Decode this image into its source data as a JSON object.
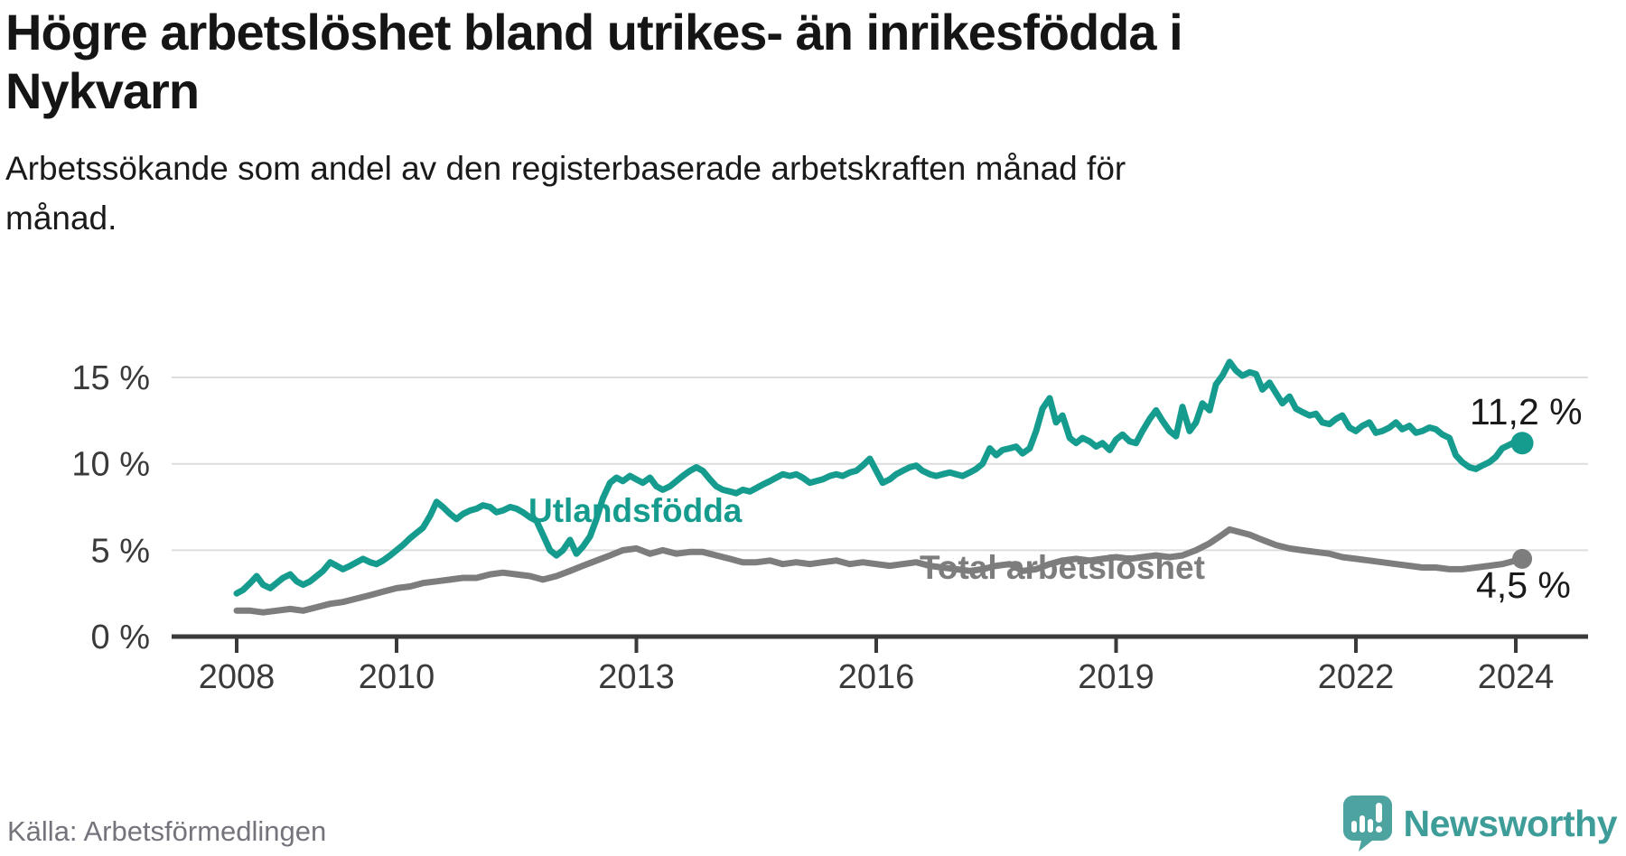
{
  "header": {
    "title": "Högre arbetslöshet bland utrikes- än inrikesfödda i\nNykvarn",
    "subtitle": "Arbetssökande som andel av den registerbaserade arbetskraften månad för\nmånad."
  },
  "footer": {
    "source": "Källa: Arbetsförmedlingen",
    "logo_text": "Newsworthy",
    "logo_color": "#3e9d99",
    "logo_icon": "speech-bubble-bar-chart-exclamation"
  },
  "colors": {
    "foreign_born_line": "#159c8f",
    "total_line": "#7d7d7d",
    "grid": "#dddddd",
    "axis": "#3a3a3a",
    "annotation_text": "#1a1a1a"
  },
  "chart_data": {
    "type": "line",
    "title": "Högre arbetslöshet bland utrikes- än inrikesfödda i Nykvarn",
    "subtitle": "Arbetssökande som andel av den registerbaserade arbetskraften månad för månad.",
    "unit": "%",
    "grid": true,
    "legend_position": "inline-labels",
    "x_axis": {
      "ticks": [
        2008,
        2010,
        2013,
        2016,
        2019,
        2022,
        2024
      ],
      "tick_labels": [
        "2008",
        "2010",
        "2013",
        "2016",
        "2019",
        "2022",
        "2024"
      ],
      "range": [
        2007.2,
        2024.9
      ]
    },
    "y_axis": {
      "ticks": [
        15,
        10,
        5,
        0
      ],
      "tick_labels": [
        "15 %",
        "10 %",
        "5 %",
        "0 %"
      ],
      "range": [
        0,
        16.8
      ]
    },
    "series": [
      {
        "name": "Utlandsfödda",
        "color": "#159c8f",
        "end_label": "11,2 %",
        "end_value": 11.2,
        "points": [
          [
            2008.0,
            2.5
          ],
          [
            2008.08,
            2.7
          ],
          [
            2008.17,
            3.1
          ],
          [
            2008.25,
            3.5
          ],
          [
            2008.33,
            3.0
          ],
          [
            2008.42,
            2.8
          ],
          [
            2008.5,
            3.1
          ],
          [
            2008.58,
            3.4
          ],
          [
            2008.67,
            3.6
          ],
          [
            2008.75,
            3.2
          ],
          [
            2008.83,
            3.0
          ],
          [
            2008.92,
            3.2
          ],
          [
            2009.0,
            3.5
          ],
          [
            2009.08,
            3.8
          ],
          [
            2009.17,
            4.3
          ],
          [
            2009.25,
            4.1
          ],
          [
            2009.33,
            3.9
          ],
          [
            2009.42,
            4.1
          ],
          [
            2009.5,
            4.3
          ],
          [
            2009.58,
            4.5
          ],
          [
            2009.67,
            4.3
          ],
          [
            2009.75,
            4.2
          ],
          [
            2009.83,
            4.4
          ],
          [
            2009.92,
            4.7
          ],
          [
            2010.0,
            5.0
          ],
          [
            2010.08,
            5.3
          ],
          [
            2010.17,
            5.7
          ],
          [
            2010.25,
            6.0
          ],
          [
            2010.33,
            6.3
          ],
          [
            2010.42,
            7.0
          ],
          [
            2010.5,
            7.8
          ],
          [
            2010.58,
            7.5
          ],
          [
            2010.67,
            7.1
          ],
          [
            2010.75,
            6.8
          ],
          [
            2010.83,
            7.1
          ],
          [
            2010.92,
            7.3
          ],
          [
            2011.0,
            7.4
          ],
          [
            2011.08,
            7.6
          ],
          [
            2011.17,
            7.5
          ],
          [
            2011.25,
            7.2
          ],
          [
            2011.33,
            7.3
          ],
          [
            2011.42,
            7.5
          ],
          [
            2011.5,
            7.4
          ],
          [
            2011.58,
            7.2
          ],
          [
            2011.67,
            6.9
          ],
          [
            2011.75,
            6.7
          ],
          [
            2011.83,
            5.9
          ],
          [
            2011.92,
            5.0
          ],
          [
            2012.0,
            4.7
          ],
          [
            2012.08,
            5.0
          ],
          [
            2012.17,
            5.6
          ],
          [
            2012.25,
            4.8
          ],
          [
            2012.33,
            5.2
          ],
          [
            2012.42,
            5.8
          ],
          [
            2012.5,
            6.8
          ],
          [
            2012.58,
            8.0
          ],
          [
            2012.67,
            8.9
          ],
          [
            2012.75,
            9.2
          ],
          [
            2012.83,
            9.0
          ],
          [
            2012.92,
            9.3
          ],
          [
            2013.0,
            9.1
          ],
          [
            2013.08,
            8.9
          ],
          [
            2013.17,
            9.2
          ],
          [
            2013.25,
            8.7
          ],
          [
            2013.33,
            8.5
          ],
          [
            2013.42,
            8.7
          ],
          [
            2013.5,
            9.0
          ],
          [
            2013.58,
            9.3
          ],
          [
            2013.67,
            9.6
          ],
          [
            2013.75,
            9.8
          ],
          [
            2013.83,
            9.6
          ],
          [
            2013.92,
            9.1
          ],
          [
            2014.0,
            8.7
          ],
          [
            2014.08,
            8.5
          ],
          [
            2014.17,
            8.4
          ],
          [
            2014.25,
            8.3
          ],
          [
            2014.33,
            8.5
          ],
          [
            2014.42,
            8.4
          ],
          [
            2014.5,
            8.6
          ],
          [
            2014.58,
            8.8
          ],
          [
            2014.67,
            9.0
          ],
          [
            2014.75,
            9.2
          ],
          [
            2014.83,
            9.4
          ],
          [
            2014.92,
            9.3
          ],
          [
            2015.0,
            9.4
          ],
          [
            2015.08,
            9.2
          ],
          [
            2015.17,
            8.9
          ],
          [
            2015.25,
            9.0
          ],
          [
            2015.33,
            9.1
          ],
          [
            2015.42,
            9.3
          ],
          [
            2015.5,
            9.4
          ],
          [
            2015.58,
            9.3
          ],
          [
            2015.67,
            9.5
          ],
          [
            2015.75,
            9.6
          ],
          [
            2015.83,
            9.9
          ],
          [
            2015.92,
            10.3
          ],
          [
            2016.0,
            9.6
          ],
          [
            2016.08,
            8.9
          ],
          [
            2016.17,
            9.1
          ],
          [
            2016.25,
            9.4
          ],
          [
            2016.33,
            9.6
          ],
          [
            2016.42,
            9.8
          ],
          [
            2016.5,
            9.9
          ],
          [
            2016.58,
            9.6
          ],
          [
            2016.67,
            9.4
          ],
          [
            2016.75,
            9.3
          ],
          [
            2016.83,
            9.4
          ],
          [
            2016.92,
            9.5
          ],
          [
            2017.0,
            9.4
          ],
          [
            2017.08,
            9.3
          ],
          [
            2017.17,
            9.5
          ],
          [
            2017.25,
            9.7
          ],
          [
            2017.33,
            10.0
          ],
          [
            2017.42,
            10.9
          ],
          [
            2017.5,
            10.5
          ],
          [
            2017.58,
            10.8
          ],
          [
            2017.67,
            10.9
          ],
          [
            2017.75,
            11.0
          ],
          [
            2017.83,
            10.6
          ],
          [
            2017.92,
            10.9
          ],
          [
            2018.0,
            11.9
          ],
          [
            2018.08,
            13.2
          ],
          [
            2018.17,
            13.8
          ],
          [
            2018.25,
            12.4
          ],
          [
            2018.33,
            12.8
          ],
          [
            2018.42,
            11.5
          ],
          [
            2018.5,
            11.2
          ],
          [
            2018.58,
            11.5
          ],
          [
            2018.67,
            11.3
          ],
          [
            2018.75,
            11.0
          ],
          [
            2018.83,
            11.2
          ],
          [
            2018.92,
            10.8
          ],
          [
            2019.0,
            11.4
          ],
          [
            2019.08,
            11.7
          ],
          [
            2019.17,
            11.3
          ],
          [
            2019.25,
            11.2
          ],
          [
            2019.33,
            11.9
          ],
          [
            2019.42,
            12.6
          ],
          [
            2019.5,
            13.1
          ],
          [
            2019.58,
            12.5
          ],
          [
            2019.67,
            11.9
          ],
          [
            2019.75,
            11.6
          ],
          [
            2019.83,
            13.3
          ],
          [
            2019.92,
            11.9
          ],
          [
            2020.0,
            12.4
          ],
          [
            2020.08,
            13.5
          ],
          [
            2020.17,
            13.1
          ],
          [
            2020.25,
            14.6
          ],
          [
            2020.33,
            15.1
          ],
          [
            2020.42,
            15.9
          ],
          [
            2020.5,
            15.4
          ],
          [
            2020.58,
            15.1
          ],
          [
            2020.67,
            15.3
          ],
          [
            2020.75,
            15.2
          ],
          [
            2020.83,
            14.3
          ],
          [
            2020.92,
            14.7
          ],
          [
            2021.0,
            14.1
          ],
          [
            2021.08,
            13.5
          ],
          [
            2021.17,
            13.9
          ],
          [
            2021.25,
            13.2
          ],
          [
            2021.33,
            13.0
          ],
          [
            2021.42,
            12.8
          ],
          [
            2021.5,
            12.9
          ],
          [
            2021.58,
            12.4
          ],
          [
            2021.67,
            12.3
          ],
          [
            2021.75,
            12.6
          ],
          [
            2021.83,
            12.8
          ],
          [
            2021.92,
            12.1
          ],
          [
            2022.0,
            11.9
          ],
          [
            2022.08,
            12.2
          ],
          [
            2022.17,
            12.4
          ],
          [
            2022.25,
            11.8
          ],
          [
            2022.33,
            11.9
          ],
          [
            2022.42,
            12.1
          ],
          [
            2022.5,
            12.4
          ],
          [
            2022.58,
            12.0
          ],
          [
            2022.67,
            12.2
          ],
          [
            2022.75,
            11.8
          ],
          [
            2022.83,
            11.9
          ],
          [
            2022.92,
            12.1
          ],
          [
            2023.0,
            12.0
          ],
          [
            2023.08,
            11.7
          ],
          [
            2023.17,
            11.5
          ],
          [
            2023.25,
            10.5
          ],
          [
            2023.33,
            10.1
          ],
          [
            2023.42,
            9.8
          ],
          [
            2023.5,
            9.7
          ],
          [
            2023.58,
            9.9
          ],
          [
            2023.67,
            10.1
          ],
          [
            2023.75,
            10.4
          ],
          [
            2023.83,
            10.9
          ],
          [
            2023.92,
            11.1
          ],
          [
            2024.0,
            11.3
          ],
          [
            2024.08,
            11.2
          ]
        ]
      },
      {
        "name": "Total arbetslöshet",
        "color": "#7d7d7d",
        "end_label": "4,5 %",
        "end_value": 4.5,
        "points": [
          [
            2008.0,
            1.5
          ],
          [
            2008.17,
            1.5
          ],
          [
            2008.33,
            1.4
          ],
          [
            2008.5,
            1.5
          ],
          [
            2008.67,
            1.6
          ],
          [
            2008.83,
            1.5
          ],
          [
            2009.0,
            1.7
          ],
          [
            2009.17,
            1.9
          ],
          [
            2009.33,
            2.0
          ],
          [
            2009.5,
            2.2
          ],
          [
            2009.67,
            2.4
          ],
          [
            2009.83,
            2.6
          ],
          [
            2010.0,
            2.8
          ],
          [
            2010.17,
            2.9
          ],
          [
            2010.33,
            3.1
          ],
          [
            2010.5,
            3.2
          ],
          [
            2010.67,
            3.3
          ],
          [
            2010.83,
            3.4
          ],
          [
            2011.0,
            3.4
          ],
          [
            2011.17,
            3.6
          ],
          [
            2011.33,
            3.7
          ],
          [
            2011.5,
            3.6
          ],
          [
            2011.67,
            3.5
          ],
          [
            2011.83,
            3.3
          ],
          [
            2012.0,
            3.5
          ],
          [
            2012.17,
            3.8
          ],
          [
            2012.33,
            4.1
          ],
          [
            2012.5,
            4.4
          ],
          [
            2012.67,
            4.7
          ],
          [
            2012.83,
            5.0
          ],
          [
            2013.0,
            5.1
          ],
          [
            2013.17,
            4.8
          ],
          [
            2013.33,
            5.0
          ],
          [
            2013.5,
            4.8
          ],
          [
            2013.67,
            4.9
          ],
          [
            2013.83,
            4.9
          ],
          [
            2014.0,
            4.7
          ],
          [
            2014.17,
            4.5
          ],
          [
            2014.33,
            4.3
          ],
          [
            2014.5,
            4.3
          ],
          [
            2014.67,
            4.4
          ],
          [
            2014.83,
            4.2
          ],
          [
            2015.0,
            4.3
          ],
          [
            2015.17,
            4.2
          ],
          [
            2015.33,
            4.3
          ],
          [
            2015.5,
            4.4
          ],
          [
            2015.67,
            4.2
          ],
          [
            2015.83,
            4.3
          ],
          [
            2016.0,
            4.2
          ],
          [
            2016.17,
            4.1
          ],
          [
            2016.33,
            4.2
          ],
          [
            2016.5,
            4.3
          ],
          [
            2016.67,
            4.1
          ],
          [
            2016.83,
            4.0
          ],
          [
            2017.0,
            3.9
          ],
          [
            2017.17,
            3.8
          ],
          [
            2017.33,
            3.9
          ],
          [
            2017.5,
            4.1
          ],
          [
            2017.67,
            4.2
          ],
          [
            2017.83,
            3.8
          ],
          [
            2018.0,
            3.9
          ],
          [
            2018.17,
            4.2
          ],
          [
            2018.33,
            4.4
          ],
          [
            2018.5,
            4.5
          ],
          [
            2018.67,
            4.4
          ],
          [
            2018.83,
            4.5
          ],
          [
            2019.0,
            4.6
          ],
          [
            2019.17,
            4.5
          ],
          [
            2019.33,
            4.6
          ],
          [
            2019.5,
            4.7
          ],
          [
            2019.67,
            4.6
          ],
          [
            2019.83,
            4.7
          ],
          [
            2020.0,
            5.0
          ],
          [
            2020.17,
            5.4
          ],
          [
            2020.33,
            5.9
          ],
          [
            2020.42,
            6.2
          ],
          [
            2020.5,
            6.1
          ],
          [
            2020.67,
            5.9
          ],
          [
            2020.83,
            5.6
          ],
          [
            2021.0,
            5.3
          ],
          [
            2021.17,
            5.1
          ],
          [
            2021.33,
            5.0
          ],
          [
            2021.5,
            4.9
          ],
          [
            2021.67,
            4.8
          ],
          [
            2021.83,
            4.6
          ],
          [
            2022.0,
            4.5
          ],
          [
            2022.17,
            4.4
          ],
          [
            2022.33,
            4.3
          ],
          [
            2022.5,
            4.2
          ],
          [
            2022.67,
            4.1
          ],
          [
            2022.83,
            4.0
          ],
          [
            2023.0,
            4.0
          ],
          [
            2023.17,
            3.9
          ],
          [
            2023.33,
            3.9
          ],
          [
            2023.5,
            4.0
          ],
          [
            2023.67,
            4.1
          ],
          [
            2023.83,
            4.2
          ],
          [
            2024.0,
            4.4
          ],
          [
            2024.08,
            4.5
          ]
        ]
      }
    ]
  }
}
